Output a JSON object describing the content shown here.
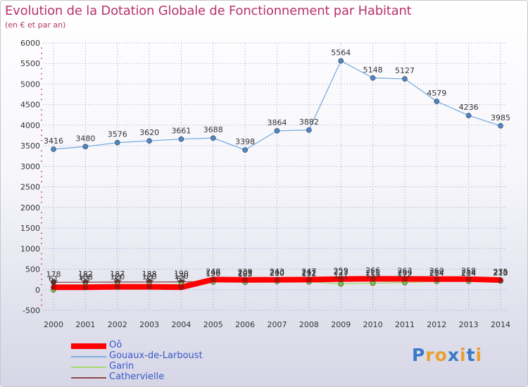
{
  "header": {
    "title": "Evolution de la Dotation Globale de Fonctionnement par Habitant",
    "subtitle": "(en € et par an)"
  },
  "colors": {
    "title": "#b8336a",
    "grid": "#9a9ad0",
    "axis_ticks": "#e05080",
    "legend_text": "#3a58c8"
  },
  "chart_data": {
    "type": "line",
    "title": "Evolution de la Dotation Globale de Fonctionnement par Habitant",
    "subtitle": "(en € et par an)",
    "xlabel": "",
    "ylabel": "",
    "x": [
      "2000",
      "2001",
      "2002",
      "2003",
      "2004",
      "2005",
      "2006",
      "2007",
      "2008",
      "2009",
      "2010",
      "2011",
      "2012",
      "2013",
      "2014"
    ],
    "ylim": [
      -500,
      6000
    ],
    "yticks": [
      -500,
      0,
      500,
      1000,
      1500,
      2000,
      2500,
      3000,
      3500,
      4000,
      4500,
      5000,
      5500,
      6000
    ],
    "grid": true,
    "legend_position": "bottom-left",
    "series": [
      {
        "name": "Gouaux-de-Larboust",
        "color": "#7aaee0",
        "marker_color": "#4f86c6",
        "values": [
          3416,
          3480,
          3576,
          3620,
          3661,
          3688,
          3398,
          3864,
          3882,
          5564,
          5148,
          5127,
          4579,
          4236,
          3985
        ],
        "labels_shown": true
      },
      {
        "name": "Cathervielle",
        "color": "#8b4a4a",
        "marker_color": "#7a2a2a",
        "values": [
          178,
          182,
          187,
          188,
          190,
          198,
          203,
          210,
          212,
          223,
          211,
          209,
          214,
          214,
          213
        ],
        "labels_shown": false
      },
      {
        "name": "Garin",
        "color": "#a6dc6e",
        "marker_color": "#7cc34a",
        "values": [
          0,
          108,
          120,
          120,
          130,
          190,
          185,
          200,
          192,
          141,
          159,
          172,
          204,
          204,
          210
        ],
        "labels_shown": false
      },
      {
        "name": "Oô",
        "color": "#ff0000",
        "marker_color": "#cc0000",
        "values": [
          61,
          61,
          71,
          71,
          61,
          248,
          239,
          243,
          247,
          259,
          266,
          263,
          260,
          258,
          235
        ],
        "labels_shown": false
      }
    ]
  },
  "legend": {
    "items": [
      {
        "label": "Oô",
        "color": "#ff0000"
      },
      {
        "label": "Gouaux-de-Larboust",
        "color": "#7aaee0"
      },
      {
        "label": "Garin",
        "color": "#a6dc6e"
      },
      {
        "label": "Cathervielle",
        "color": "#8b4a4a"
      }
    ]
  },
  "brand": {
    "logo_text": "Proxiti",
    "letters": [
      "P",
      "r",
      "o",
      "x",
      "i",
      "t",
      "i"
    ],
    "letter_colors": [
      "#3a78c8",
      "#e8a030",
      "#e8a030",
      "#3a78c8",
      "#e8a030",
      "#3a78c8",
      "#e8a030"
    ]
  }
}
